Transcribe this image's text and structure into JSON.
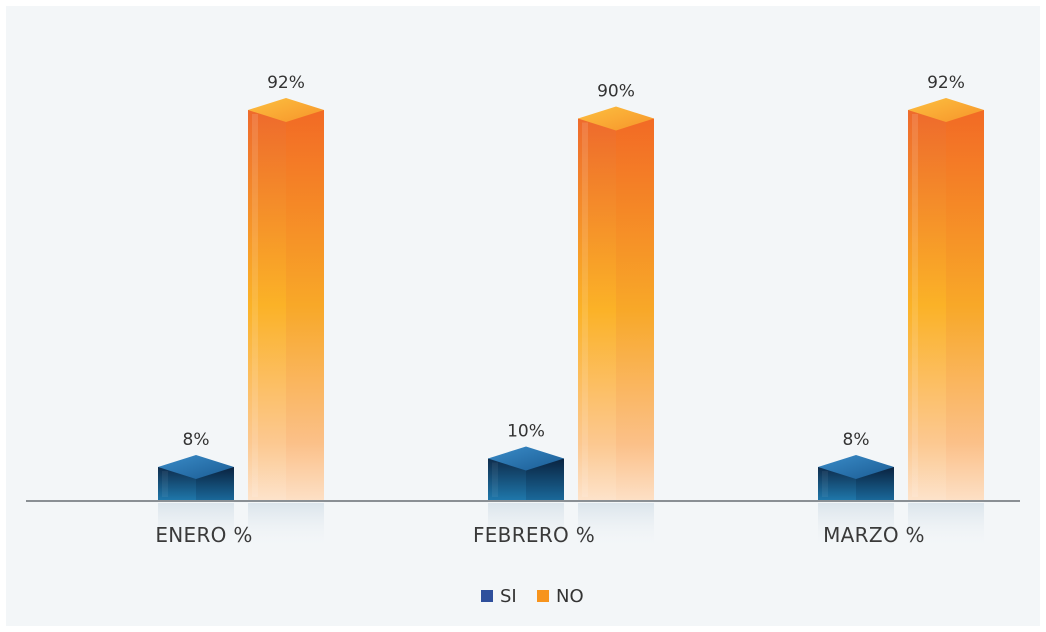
{
  "chart_data": {
    "type": "bar",
    "categories": [
      "ENERO %",
      "FEBRERO %",
      "MARZO %"
    ],
    "series": [
      {
        "name": "SI",
        "values": [
          8,
          10,
          8
        ],
        "labels": [
          "8%",
          "10%",
          "8%"
        ],
        "color": "#1f5a86"
      },
      {
        "name": "NO",
        "values": [
          92,
          90,
          92
        ],
        "labels": [
          "92%",
          "90%",
          "92%"
        ],
        "color": "#f7941d"
      }
    ],
    "ylim": [
      0,
      100
    ],
    "grid": false,
    "legend_position": "bottom"
  }
}
